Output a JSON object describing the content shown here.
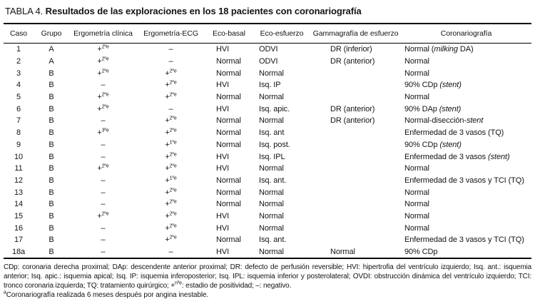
{
  "title": {
    "label": "TABLA 4.",
    "text": "Resultados de las exploraciones en los 18 pacientes con coronariografía"
  },
  "table": {
    "headers": [
      "Caso",
      "Grupo",
      "Ergometría clínica",
      "Ergometría-ECG",
      "Eco-basal",
      "Eco-esfuerzo",
      "Gammagrafía de esfuerzo",
      "Coronariografía"
    ],
    "rows": [
      {
        "caso": "1",
        "grupo": "A",
        "erg_clin": [
          {
            "t": "+"
          },
          {
            "t": "2ºe",
            "f": "sup"
          }
        ],
        "erg_ecg": [
          {
            "t": "–"
          }
        ],
        "eco_basal": "HVI",
        "eco_esf": "ODVI",
        "gamma": "DR (inferior)",
        "corona": [
          {
            "t": "Normal ("
          },
          {
            "t": "milking",
            "f": "i"
          },
          {
            "t": " DA)"
          }
        ]
      },
      {
        "caso": "2",
        "grupo": "A",
        "erg_clin": [
          {
            "t": "+"
          },
          {
            "t": "2ºe",
            "f": "sup"
          }
        ],
        "erg_ecg": [
          {
            "t": "–"
          }
        ],
        "eco_basal": "Normal",
        "eco_esf": "ODVI",
        "gamma": "DR (anterior)",
        "corona": [
          {
            "t": "Normal"
          }
        ]
      },
      {
        "caso": "3",
        "grupo": "B",
        "erg_clin": [
          {
            "t": "+"
          },
          {
            "t": "2ºe",
            "f": "sup"
          }
        ],
        "erg_ecg": [
          {
            "t": "+"
          },
          {
            "t": "2ºe",
            "f": "sup"
          }
        ],
        "eco_basal": "Normal",
        "eco_esf": "Normal",
        "gamma": "",
        "corona": [
          {
            "t": "Normal"
          }
        ]
      },
      {
        "caso": "4",
        "grupo": "B",
        "erg_clin": [
          {
            "t": "–"
          }
        ],
        "erg_ecg": [
          {
            "t": "+"
          },
          {
            "t": "2ºe",
            "f": "sup"
          }
        ],
        "eco_basal": "HVI",
        "eco_esf": "Isq. IP",
        "gamma": "",
        "corona": [
          {
            "t": "90% CDp "
          },
          {
            "t": "(stent)",
            "f": "i"
          }
        ]
      },
      {
        "caso": "5",
        "grupo": "B",
        "erg_clin": [
          {
            "t": "+"
          },
          {
            "t": "2ºe",
            "f": "sup"
          }
        ],
        "erg_ecg": [
          {
            "t": "+"
          },
          {
            "t": "2ºe",
            "f": "sup"
          }
        ],
        "eco_basal": "Normal",
        "eco_esf": "Normal",
        "gamma": "",
        "corona": [
          {
            "t": "Normal"
          }
        ]
      },
      {
        "caso": "6",
        "grupo": "B",
        "erg_clin": [
          {
            "t": "+"
          },
          {
            "t": "2ºe",
            "f": "sup"
          }
        ],
        "erg_ecg": [
          {
            "t": "–"
          }
        ],
        "eco_basal": "HVI",
        "eco_esf": "Isq. apic.",
        "gamma": "DR (anterior)",
        "corona": [
          {
            "t": "90% DAp "
          },
          {
            "t": "(stent)",
            "f": "i"
          }
        ]
      },
      {
        "caso": "7",
        "grupo": "B",
        "erg_clin": [
          {
            "t": "–"
          }
        ],
        "erg_ecg": [
          {
            "t": "+"
          },
          {
            "t": "2ºe",
            "f": "sup"
          }
        ],
        "eco_basal": "Normal",
        "eco_esf": "Normal",
        "gamma": "DR (anterior)",
        "corona": [
          {
            "t": "Normal-disección-"
          },
          {
            "t": "stent",
            "f": "i"
          }
        ]
      },
      {
        "caso": "8",
        "grupo": "B",
        "erg_clin": [
          {
            "t": "+"
          },
          {
            "t": "3ºe",
            "f": "sup"
          }
        ],
        "erg_ecg": [
          {
            "t": "+"
          },
          {
            "t": "2ºe",
            "f": "sup"
          }
        ],
        "eco_basal": "Normal",
        "eco_esf": "Isq. ant",
        "gamma": "",
        "corona": [
          {
            "t": "Enfermedad de 3 vasos (TQ)"
          }
        ]
      },
      {
        "caso": "9",
        "grupo": "B",
        "erg_clin": [
          {
            "t": "–"
          }
        ],
        "erg_ecg": [
          {
            "t": "+"
          },
          {
            "t": "1ºe",
            "f": "sup"
          }
        ],
        "eco_basal": "Normal",
        "eco_esf": "Isq. post.",
        "gamma": "",
        "corona": [
          {
            "t": "90% CDp "
          },
          {
            "t": "(stent)",
            "f": "i"
          }
        ]
      },
      {
        "caso": "10",
        "grupo": "B",
        "erg_clin": [
          {
            "t": "–"
          }
        ],
        "erg_ecg": [
          {
            "t": "+"
          },
          {
            "t": "2ºe",
            "f": "sup"
          }
        ],
        "eco_basal": "HVI",
        "eco_esf": "Isq. IPL",
        "gamma": "",
        "corona": [
          {
            "t": "Enfermedad de 3 vasos "
          },
          {
            "t": "(stent)",
            "f": "i"
          }
        ]
      },
      {
        "caso": "11",
        "grupo": "B",
        "erg_clin": [
          {
            "t": "+"
          },
          {
            "t": "2ºe",
            "f": "sup"
          }
        ],
        "erg_ecg": [
          {
            "t": "+"
          },
          {
            "t": "2ºe",
            "f": "sup"
          }
        ],
        "eco_basal": "HVI",
        "eco_esf": "Normal",
        "gamma": "",
        "corona": [
          {
            "t": "Normal"
          }
        ]
      },
      {
        "caso": "12",
        "grupo": "B",
        "erg_clin": [
          {
            "t": "–"
          }
        ],
        "erg_ecg": [
          {
            "t": "+"
          },
          {
            "t": "1ºe",
            "f": "sup"
          }
        ],
        "eco_basal": "Normal",
        "eco_esf": "Isq. ant.",
        "gamma": "",
        "corona": [
          {
            "t": "Enfermedad de 3 vasos y TCI (TQ)"
          }
        ]
      },
      {
        "caso": "13",
        "grupo": "B",
        "erg_clin": [
          {
            "t": "–"
          }
        ],
        "erg_ecg": [
          {
            "t": "+"
          },
          {
            "t": "2ºe",
            "f": "sup"
          }
        ],
        "eco_basal": "Normal",
        "eco_esf": "Normal",
        "gamma": "",
        "corona": [
          {
            "t": "Normal"
          }
        ]
      },
      {
        "caso": "14",
        "grupo": "B",
        "erg_clin": [
          {
            "t": "–"
          }
        ],
        "erg_ecg": [
          {
            "t": "+"
          },
          {
            "t": "2ºe",
            "f": "sup"
          }
        ],
        "eco_basal": "Normal",
        "eco_esf": "Normal",
        "gamma": "",
        "corona": [
          {
            "t": "Normal"
          }
        ]
      },
      {
        "caso": "15",
        "grupo": "B",
        "erg_clin": [
          {
            "t": "+"
          },
          {
            "t": "2ºe",
            "f": "sup"
          }
        ],
        "erg_ecg": [
          {
            "t": "+"
          },
          {
            "t": "2ºe",
            "f": "sup"
          }
        ],
        "eco_basal": "HVI",
        "eco_esf": "Normal",
        "gamma": "",
        "corona": [
          {
            "t": "Normal"
          }
        ]
      },
      {
        "caso": "16",
        "grupo": "B",
        "erg_clin": [
          {
            "t": "–"
          }
        ],
        "erg_ecg": [
          {
            "t": "+"
          },
          {
            "t": "2ºe",
            "f": "sup"
          }
        ],
        "eco_basal": "HVI",
        "eco_esf": "Normal",
        "gamma": "",
        "corona": [
          {
            "t": "Normal"
          }
        ]
      },
      {
        "caso": "17",
        "grupo": "B",
        "erg_clin": [
          {
            "t": "–"
          }
        ],
        "erg_ecg": [
          {
            "t": "+"
          },
          {
            "t": "2ºe",
            "f": "sup"
          }
        ],
        "eco_basal": "Normal",
        "eco_esf": "Isq. ant.",
        "gamma": "",
        "corona": [
          {
            "t": "Enfermedad de 3 vasos y TCI (TQ)"
          }
        ]
      },
      {
        "caso": "18a",
        "grupo": "B",
        "erg_clin": [
          {
            "t": "–"
          }
        ],
        "erg_ecg": [
          {
            "t": "–"
          }
        ],
        "eco_basal": "HVI",
        "eco_esf": "Normal",
        "gamma": "Normal",
        "corona": [
          {
            "t": "90% CDp"
          }
        ]
      }
    ]
  },
  "footnotes": {
    "abbreviations": [
      {
        "t": "CDp: coronaria derecha proximal; DAp: descendente anterior proximal; DR: defecto de perfusión reversible; HVI: hipertrofia del ventrículo izquierdo; Isq. ant.: isquemia anterior; Isq. apic.: isquemia apical; Isq. IP: isquemia inferoposterior; Isq. IPL: isquemia inferior y posterolateral; OVDI: obstrucción dinámica del ventrículo izquierdo; TCI: tronco coronaria izquierda; TQ: tratamiento quirúrgico; +"
      },
      {
        "t": "nºe",
        "f": "sup"
      },
      {
        "t": ": estadio de positividad; –: negativo."
      }
    ],
    "case18": [
      {
        "t": "a",
        "f": "sup"
      },
      {
        "t": "Coronariografía realizada 6 meses después por angina inestable."
      }
    ]
  },
  "colors": {
    "text": "#141414",
    "rule": "#000000",
    "background": "#ffffff"
  }
}
